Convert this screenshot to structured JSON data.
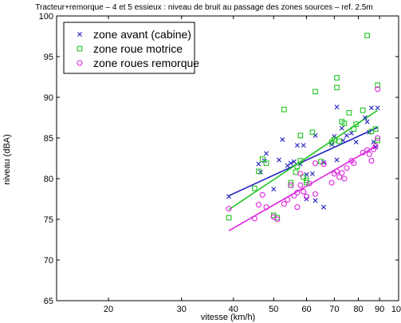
{
  "chart_data": {
    "type": "scatter",
    "title": "Tracteur+remorque – 4 et 5 essieux : niveau de bruit au passage des zones sources – ref. 2.5m",
    "xlabel": "vitesse (km/h)",
    "ylabel": "niveau (dBA)",
    "xscale": "log",
    "xlim": [
      15,
      100
    ],
    "ylim": [
      65,
      100
    ],
    "x_ticks": [
      20,
      30,
      40,
      50,
      60,
      70,
      80,
      90,
      100
    ],
    "y_ticks": [
      65,
      70,
      75,
      80,
      85,
      90,
      95,
      100
    ],
    "grid": true,
    "legend_position": "top-left",
    "series": [
      {
        "name": "zone avant (cabine)",
        "marker": "x",
        "color": "#1f1fbf",
        "points": [
          [
            39,
            77.8
          ],
          [
            46,
            81.8
          ],
          [
            46.5,
            80.8
          ],
          [
            47.5,
            82.2
          ],
          [
            48,
            83.1
          ],
          [
            50,
            78.7
          ],
          [
            51.5,
            82.3
          ],
          [
            52.5,
            84.8
          ],
          [
            54,
            81.6
          ],
          [
            55,
            81.9
          ],
          [
            57,
            84.1
          ],
          [
            56,
            82.1
          ],
          [
            58,
            81.8
          ],
          [
            59,
            84.1
          ],
          [
            60,
            80.5
          ],
          [
            60,
            77.5
          ],
          [
            62,
            80.6
          ],
          [
            63,
            77.3
          ],
          [
            63,
            85.3
          ],
          [
            66,
            82.0
          ],
          [
            66,
            76.5
          ],
          [
            69,
            84.2
          ],
          [
            70,
            85.2
          ],
          [
            71,
            88.8
          ],
          [
            71,
            82.3
          ],
          [
            73,
            86.2
          ],
          [
            73.5,
            84.7
          ],
          [
            75,
            85.3
          ],
          [
            77,
            85.6
          ],
          [
            79,
            84.5
          ],
          [
            83,
            87.5
          ],
          [
            84,
            87.0
          ],
          [
            85,
            85.7
          ],
          [
            86,
            88.7
          ],
          [
            87,
            84.5
          ],
          [
            88,
            83.9
          ],
          [
            89,
            88.7
          ]
        ],
        "fit": [
          [
            39,
            77.9
          ],
          [
            89,
            86.3
          ]
        ]
      },
      {
        "name": "zone roue motrice",
        "marker": "square",
        "color": "#22c422",
        "points": [
          [
            39,
            75.2
          ],
          [
            45,
            78.8
          ],
          [
            46,
            80.9
          ],
          [
            47,
            82.4
          ],
          [
            48,
            81.9
          ],
          [
            50,
            75.5
          ],
          [
            51,
            75.2
          ],
          [
            53,
            88.5
          ],
          [
            55,
            79.2
          ],
          [
            55,
            79.5
          ],
          [
            56.5,
            80.8
          ],
          [
            57,
            81.5
          ],
          [
            58,
            85.3
          ],
          [
            58,
            82.2
          ],
          [
            59,
            80.2
          ],
          [
            60,
            79.8
          ],
          [
            60,
            79.5
          ],
          [
            62,
            85.7
          ],
          [
            63,
            90.7
          ],
          [
            65,
            82.1
          ],
          [
            69,
            84.5
          ],
          [
            70,
            84.8
          ],
          [
            71,
            92.4
          ],
          [
            71,
            91.2
          ],
          [
            72,
            84.6
          ],
          [
            73,
            87.0
          ],
          [
            74,
            86.8
          ],
          [
            76,
            88.1
          ],
          [
            78,
            86.1
          ],
          [
            79,
            86.7
          ],
          [
            82,
            88.4
          ],
          [
            84,
            97.6
          ],
          [
            86,
            85.8
          ],
          [
            88,
            86.1
          ],
          [
            89,
            91.5
          ],
          [
            89,
            84.7
          ]
        ],
        "fit": [
          [
            39,
            76.2
          ],
          [
            89,
            88.4
          ]
        ]
      },
      {
        "name": "zone roues remorque",
        "marker": "circle",
        "color": "#dd22dd",
        "points": [
          [
            39,
            76.3
          ],
          [
            45,
            75.1
          ],
          [
            46,
            76.8
          ],
          [
            47,
            78.0
          ],
          [
            48,
            76.5
          ],
          [
            50,
            75.3
          ],
          [
            51,
            75.0
          ],
          [
            53,
            76.9
          ],
          [
            54,
            77.4
          ],
          [
            55,
            79.2
          ],
          [
            56,
            77.9
          ],
          [
            57,
            76.5
          ],
          [
            57,
            78.3
          ],
          [
            58,
            80.6
          ],
          [
            58,
            79.2
          ],
          [
            59,
            78.4
          ],
          [
            60,
            77.8
          ],
          [
            61,
            79.4
          ],
          [
            63,
            81.9
          ],
          [
            63,
            78.1
          ],
          [
            66,
            81.8
          ],
          [
            69,
            79.5
          ],
          [
            70,
            80.6
          ],
          [
            71,
            80.9
          ],
          [
            72,
            80.2
          ],
          [
            73,
            80.7
          ],
          [
            74,
            80.0
          ],
          [
            75,
            81.3
          ],
          [
            77,
            82.2
          ],
          [
            78,
            81.9
          ],
          [
            82,
            83.2
          ],
          [
            84,
            83.5
          ],
          [
            85,
            83.0
          ],
          [
            86,
            82.2
          ],
          [
            87,
            83.6
          ],
          [
            88,
            84.0
          ],
          [
            89,
            91.0
          ],
          [
            89,
            85.0
          ]
        ],
        "fit": [
          [
            39,
            73.6
          ],
          [
            89,
            84.1
          ]
        ]
      }
    ]
  }
}
